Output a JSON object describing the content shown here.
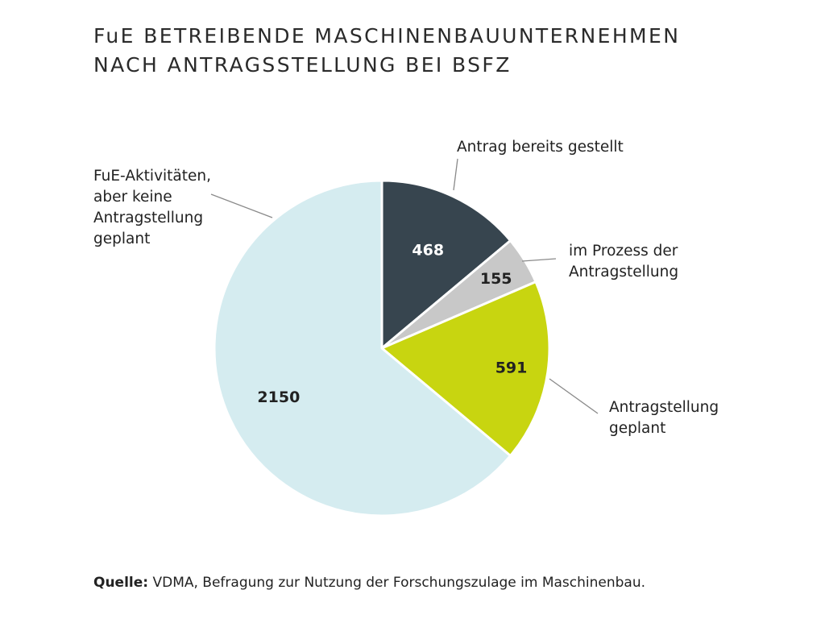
{
  "chart_data": {
    "type": "pie",
    "title": [
      "FuE BETREIBENDE MASCHINENBAUUNTERNEHMEN",
      "NACH ANTRAGSSTELLUNG BEI BSFZ"
    ],
    "slices": [
      {
        "label": [
          "Antrag bereits gestellt"
        ],
        "value": 468,
        "color": "#37454f",
        "value_color": "#ffffff"
      },
      {
        "label": [
          "im Prozess der",
          "Antragstellung"
        ],
        "value": 155,
        "color": "#c8c8c8",
        "value_color": "#222222"
      },
      {
        "label": [
          "Antragstellung",
          "geplant"
        ],
        "value": 591,
        "color": "#c8d510",
        "value_color": "#222222"
      },
      {
        "label": [
          "FuE-Aktivitäten,",
          "aber keine",
          "Antragstellung",
          "geplant"
        ],
        "value": 2150,
        "color": "#d5ecf0",
        "value_color": "#222222"
      }
    ],
    "start": "12 o'clock",
    "direction": "clockwise",
    "legend": "none",
    "source_label": "Quelle:",
    "source_text": "VDMA, Befragung zur Nutzung der Forschungszulage im Maschinenbau."
  }
}
